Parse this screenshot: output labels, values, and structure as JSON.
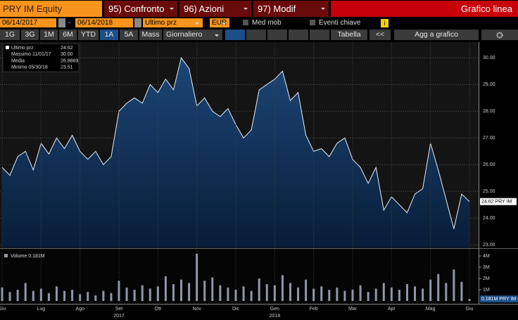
{
  "toolbar": {
    "ticker": "PRY IM Equity",
    "tabs": [
      "95) Confronto",
      "96) Azioni",
      "97) Modif"
    ],
    "view": "Grafico linea"
  },
  "controls": {
    "start": "06/14/2017",
    "sep": "-",
    "end": "06/14/2018",
    "field": "Ultimo prz",
    "currency": "EUR",
    "moving_avg": "Med mob",
    "events": "Eventi chiave",
    "info": "i",
    "ranges": [
      "1G",
      "3G",
      "1M",
      "6M",
      "YTD",
      "1A",
      "5A",
      "Mass"
    ],
    "period": "Giornaliero",
    "table": "Tabella",
    "back": "<<",
    "add": "Agg a grafico"
  },
  "chart_data": [
    {
      "type": "line",
      "color": "#e6ecf5",
      "grid": true,
      "stats": [
        {
          "label": "Ultimo prz",
          "value": "24.62"
        },
        {
          "label": "Massimo 11/01/17",
          "value": "30.00"
        },
        {
          "label": "Media",
          "value": "26.8869"
        },
        {
          "label": "Minimo 05/30/18",
          "value": "23.51"
        }
      ],
      "categories": [
        "Giu",
        null,
        null,
        null,
        null,
        "Lug",
        null,
        null,
        null,
        null,
        "Ago",
        null,
        null,
        null,
        null,
        "Set",
        null,
        null,
        null,
        null,
        "Ott",
        null,
        null,
        null,
        null,
        "Nov",
        null,
        null,
        null,
        null,
        "Dic",
        null,
        null,
        null,
        null,
        "Gen",
        null,
        null,
        null,
        null,
        "Feb",
        null,
        null,
        null,
        null,
        "Mar",
        null,
        null,
        null,
        null,
        "Apr",
        null,
        null,
        null,
        null,
        "Mag",
        null,
        null,
        null,
        null,
        "Giu"
      ],
      "years": [
        "2017",
        "2018"
      ],
      "values": [
        25.9,
        25.6,
        26.3,
        26.5,
        25.8,
        26.8,
        26.4,
        27.0,
        26.6,
        27.1,
        26.5,
        26.2,
        26.5,
        26.0,
        26.3,
        28.0,
        28.3,
        28.5,
        28.3,
        29.0,
        28.7,
        29.2,
        28.8,
        30.0,
        29.6,
        28.2,
        28.5,
        28.0,
        27.8,
        28.1,
        27.5,
        27.0,
        27.3,
        28.8,
        29.0,
        29.2,
        29.5,
        28.4,
        28.7,
        27.1,
        26.5,
        26.6,
        26.3,
        26.8,
        27.0,
        26.2,
        25.9,
        25.3,
        25.9,
        24.3,
        24.8,
        24.5,
        24.2,
        24.9,
        25.1,
        26.8,
        25.8,
        24.7,
        23.6,
        24.9,
        24.62
      ],
      "ylim": [
        22.9,
        30.53
      ],
      "yticks": [
        {
          "value": 23,
          "label": "23.00"
        },
        {
          "value": 24,
          "label": "24.00"
        },
        {
          "value": 25,
          "label": "25.00"
        },
        {
          "value": 26,
          "label": "26.00"
        },
        {
          "value": 27,
          "label": "27.00"
        },
        {
          "value": 28,
          "label": "28.00"
        },
        {
          "value": 29,
          "label": "29.00"
        },
        {
          "value": 30,
          "label": "30.00"
        }
      ],
      "last_label": "24.62 PRY IM"
    },
    {
      "type": "bar",
      "color": "#8f97a8",
      "legend": "Volume 0.181M",
      "values": [
        1.2,
        0.8,
        1.0,
        1.6,
        0.9,
        1.1,
        0.7,
        1.3,
        0.9,
        1.0,
        0.6,
        0.8,
        0.5,
        0.9,
        0.7,
        1.8,
        1.2,
        1.0,
        1.4,
        1.1,
        1.3,
        2.2,
        1.5,
        1.9,
        1.6,
        4.2,
        1.8,
        2.1,
        1.4,
        1.2,
        1.0,
        1.3,
        0.9,
        2.0,
        1.5,
        1.4,
        2.3,
        1.6,
        1.2,
        1.9,
        1.1,
        1.3,
        1.0,
        1.2,
        0.9,
        1.0,
        1.4,
        0.8,
        1.1,
        1.6,
        1.2,
        1.0,
        1.5,
        1.3,
        1.1,
        1.9,
        2.4,
        1.6,
        2.8,
        1.7,
        0.181
      ],
      "ylim": [
        0,
        4.5
      ],
      "yticks": [
        {
          "value": 1,
          "label": "1M"
        },
        {
          "value": 2,
          "label": "2M"
        },
        {
          "value": 3,
          "label": "3M"
        },
        {
          "value": 4,
          "label": "4M"
        }
      ],
      "last_label": "0.181M PRY IM"
    }
  ]
}
